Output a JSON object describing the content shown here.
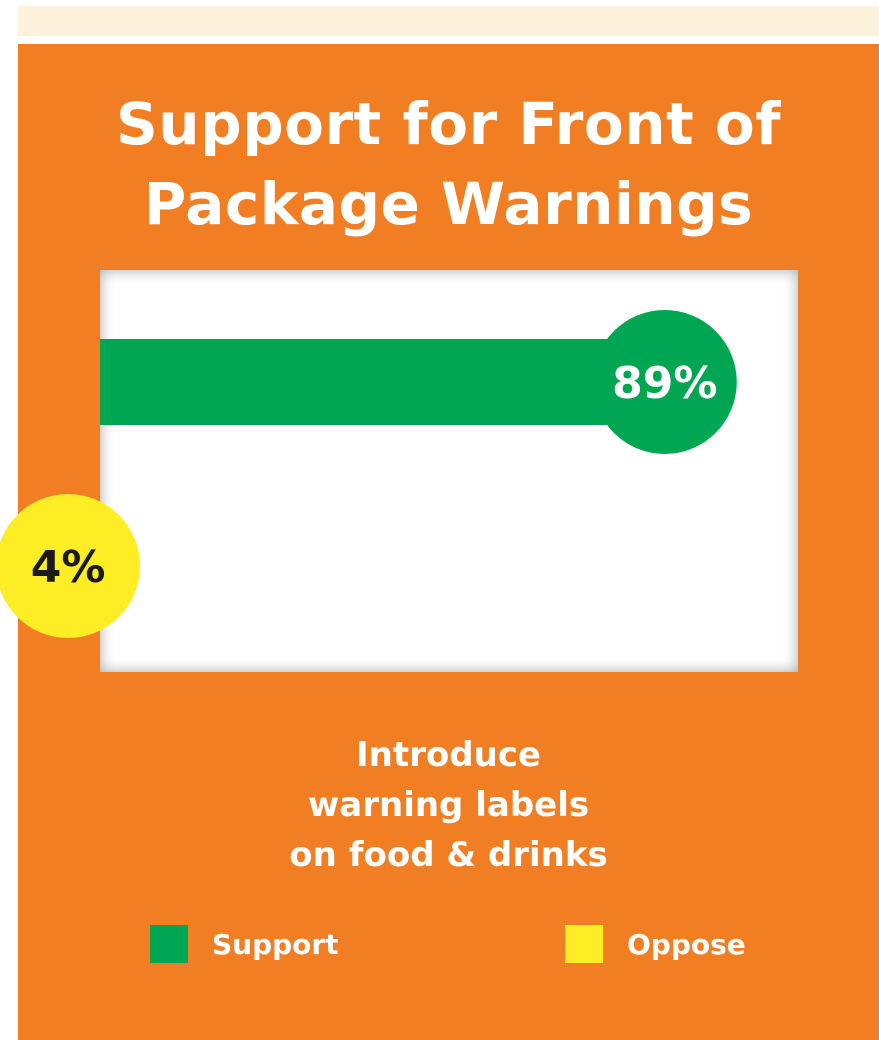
{
  "chart_data": {
    "type": "bar",
    "orientation": "horizontal",
    "title": "Support for Front of Package Warnings",
    "categories": [
      "Introduce warning labels on food & drinks"
    ],
    "series": [
      {
        "name": "Support",
        "values": [
          89
        ],
        "value_label": "89%",
        "color": "#00a651",
        "label_color": "#ffffff"
      },
      {
        "name": "Oppose",
        "values": [
          4
        ],
        "value_label": "4%",
        "color": "#fced24",
        "label_color": "#1a1a1a"
      }
    ],
    "unit": "%",
    "xlim": [
      0,
      100
    ],
    "legend": "bottom",
    "caption_lines": [
      "Introduce",
      "warning labels",
      "on food & drinks"
    ]
  },
  "colors": {
    "panel": "#f27e24",
    "top_strip": "#fdf3dc",
    "plot_background": "#ffffff"
  }
}
